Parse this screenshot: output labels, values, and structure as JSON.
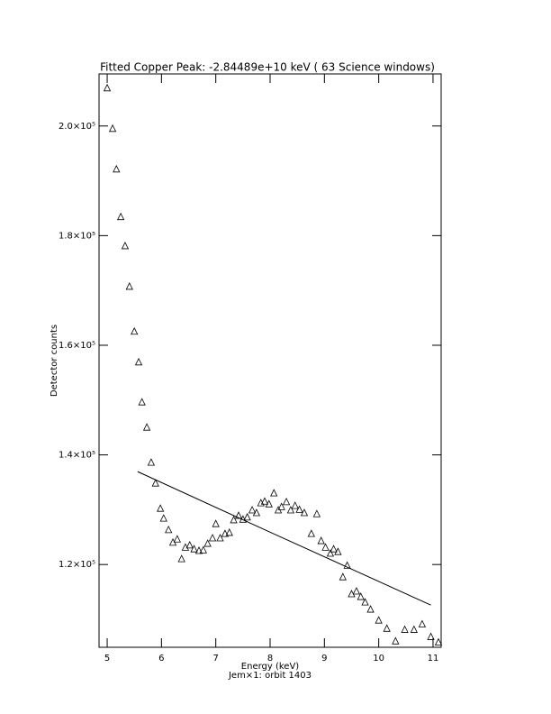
{
  "chart_data": {
    "type": "scatter",
    "title": "Fitted Copper Peak:  -2.84489e+10 keV (      63 Science windows)",
    "xlabel": "Energy (keV)",
    "subtitle": "Jem×1: orbit 1403",
    "ylabel": "Detector counts",
    "xlim": [
      4.85,
      11.15
    ],
    "ylim": [
      104900,
      209500
    ],
    "xticks": [
      5,
      6,
      7,
      8,
      9,
      10,
      11
    ],
    "yticks": [
      {
        "value": 120000,
        "label": "1.2×10⁵"
      },
      {
        "value": 140000,
        "label": "1.4×10⁵"
      },
      {
        "value": 160000,
        "label": "1.6×10⁵"
      },
      {
        "value": 180000,
        "label": "1.8×10⁵"
      },
      {
        "value": 200000,
        "label": "2.0×10⁵"
      }
    ],
    "marker": "triangle",
    "color": "#000000",
    "x": [
      5.0,
      5.1,
      5.17,
      5.25,
      5.33,
      5.41,
      5.5,
      5.58,
      5.64,
      5.73,
      5.81,
      5.89,
      5.98,
      6.04,
      6.13,
      6.21,
      6.29,
      6.37,
      6.44,
      6.52,
      6.6,
      6.69,
      6.77,
      6.85,
      6.94,
      7.0,
      7.08,
      7.17,
      7.25,
      7.33,
      7.42,
      7.5,
      7.58,
      7.67,
      7.75,
      7.83,
      7.9,
      7.98,
      8.07,
      8.15,
      8.21,
      8.3,
      8.38,
      8.46,
      8.54,
      8.63,
      8.76,
      8.86,
      8.94,
      9.02,
      9.11,
      9.17,
      9.25,
      9.34,
      9.42,
      9.5,
      9.59,
      9.67,
      9.75,
      9.85,
      10.0,
      10.15,
      10.31,
      10.48,
      10.65,
      10.8,
      10.96,
      11.1
    ],
    "values": [
      206900,
      199500,
      192100,
      183400,
      178100,
      170700,
      162500,
      156900,
      149600,
      145000,
      138600,
      134800,
      130200,
      128400,
      126300,
      124000,
      124600,
      121000,
      123100,
      123500,
      122800,
      122500,
      122600,
      123800,
      124800,
      127400,
      124800,
      125600,
      125800,
      128100,
      128900,
      128200,
      128600,
      129900,
      129400,
      131200,
      131500,
      131000,
      133000,
      129900,
      130500,
      131400,
      129900,
      130700,
      130000,
      129400,
      125600,
      129200,
      124300,
      123100,
      122000,
      122800,
      122300,
      117700,
      119800,
      114600,
      115100,
      114100,
      113100,
      111800,
      109800,
      108300,
      106000,
      108100,
      108100,
      109100,
      106800,
      105800
    ],
    "fit": {
      "type": "line",
      "color": "#000000",
      "x": [
        5.56,
        8.0,
        10.96
      ],
      "values": [
        136950,
        125900,
        112600
      ]
    }
  }
}
